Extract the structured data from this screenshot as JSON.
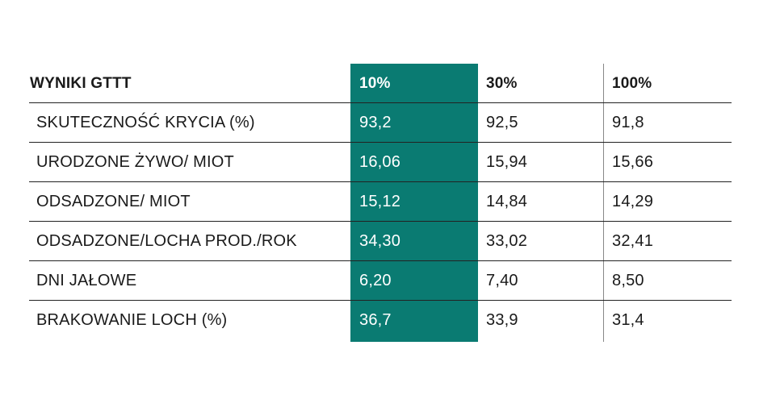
{
  "table": {
    "header": {
      "label": "WYNIKI GTTT",
      "col1": "10%",
      "col2": "30%",
      "col3": "100%"
    },
    "rows": [
      {
        "label": "SKUTECZNOŚĆ KRYCIA (%)",
        "v1": "93,2",
        "v2": "92,5",
        "v3": "91,8"
      },
      {
        "label": "URODZONE ŻYWO/ MIOT",
        "v1": "16,06",
        "v2": "15,94",
        "v3": "15,66"
      },
      {
        "label": "ODSADZONE/ MIOT",
        "v1": "15,12",
        "v2": "14,84",
        "v3": "14,29"
      },
      {
        "label": "ODSADZONE/LOCHA PROD./ROK",
        "v1": "34,30",
        "v2": "33,02",
        "v3": "32,41"
      },
      {
        "label": "DNI JAŁOWE",
        "v1": "6,20",
        "v2": "7,40",
        "v3": "8,50"
      },
      {
        "label": "BRAKOWANIE LOCH (%)",
        "v1": "36,7",
        "v2": "33,9",
        "v3": "31,4"
      }
    ]
  },
  "colors": {
    "highlight_column": "#0a7b72",
    "text": "#1a1a1a",
    "rule": "#222222"
  }
}
